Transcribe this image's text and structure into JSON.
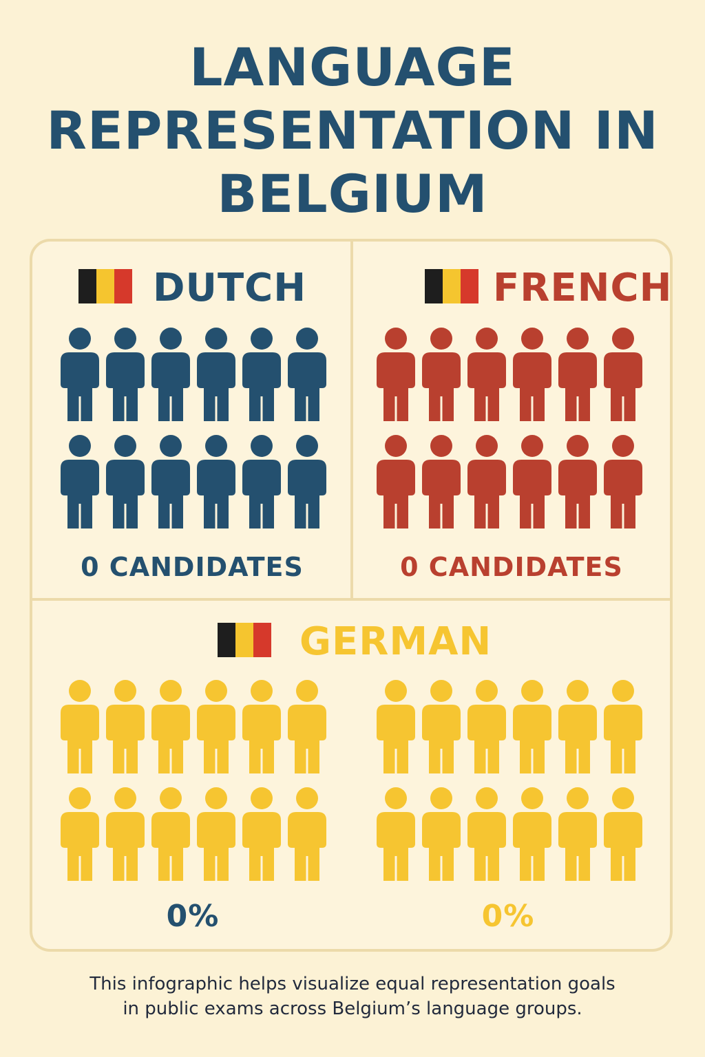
{
  "title": {
    "line1": "LANGUAGE",
    "line2": "REPRESENTATION IN",
    "line3": "BELGIUM"
  },
  "colors": {
    "background": "#fcf2d5",
    "dutch": "#24506f",
    "french": "#b9402f",
    "german": "#f6c531",
    "flag_black": "#1e1e1e",
    "flag_yellow": "#f5c52f",
    "flag_red": "#d6392b"
  },
  "groups": {
    "dutch": {
      "label": "DUTCH",
      "icon": "person-icon",
      "people": 12,
      "count_label": "0 CANDIDATES"
    },
    "french": {
      "label": "FRENCH",
      "icon": "person-icon",
      "people": 12,
      "count_label": "0 CANDIDATES"
    },
    "german": {
      "label": "GERMAN",
      "icon": "person-icon",
      "left": {
        "people": 12,
        "percent_label": "0%"
      },
      "right": {
        "people": 12,
        "percent_label": "0%"
      }
    }
  },
  "footnote": {
    "line1": "This infographic helps visualize equal representation goals",
    "line2": "in public exams across Belgium’s language groups."
  }
}
